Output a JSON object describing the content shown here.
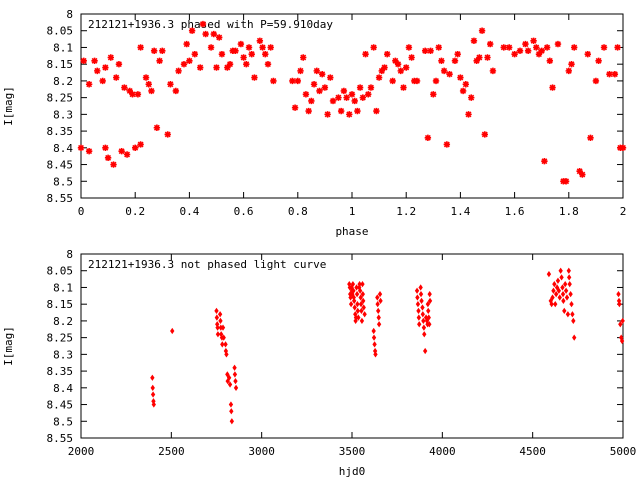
{
  "colors": {
    "marker": "#ff0000",
    "axis": "#000000",
    "background": "#ffffff"
  },
  "chart_data": [
    {
      "type": "scatter",
      "title": "212121+1936.3 phased with P=59.910day",
      "xlabel": "phase",
      "ylabel": "I[mag]",
      "xlim": [
        0,
        2
      ],
      "ylim": [
        8.55,
        8.0
      ],
      "y_inverted": true,
      "grid": false,
      "marker": "star",
      "xticks": [
        0,
        0.2,
        0.4,
        0.6,
        0.8,
        1,
        1.2,
        1.4,
        1.6,
        1.8,
        2
      ],
      "xtick_labels": [
        "0",
        "0.2",
        "0.4",
        "0.6",
        "0.8",
        "1",
        "1.2",
        "1.4",
        "1.6",
        "1.8",
        "2"
      ],
      "yticks": [
        8,
        8.05,
        8.1,
        8.15,
        8.2,
        8.25,
        8.3,
        8.35,
        8.4,
        8.45,
        8.5,
        8.55
      ],
      "ytick_labels": [
        "8",
        "8.05",
        "8.1",
        "8.15",
        "8.2",
        "8.25",
        "8.3",
        "8.35",
        "8.4",
        "8.45",
        "8.5",
        "8.55"
      ],
      "points": [
        [
          0.0,
          8.4
        ],
        [
          0.01,
          8.14
        ],
        [
          0.03,
          8.41
        ],
        [
          0.03,
          8.21
        ],
        [
          0.05,
          8.14
        ],
        [
          0.06,
          8.17
        ],
        [
          0.08,
          8.2
        ],
        [
          0.09,
          8.4
        ],
        [
          0.09,
          8.16
        ],
        [
          0.1,
          8.43
        ],
        [
          0.11,
          8.13
        ],
        [
          0.12,
          8.45
        ],
        [
          0.13,
          8.19
        ],
        [
          0.14,
          8.15
        ],
        [
          0.15,
          8.41
        ],
        [
          0.16,
          8.22
        ],
        [
          0.17,
          8.42
        ],
        [
          0.18,
          8.23
        ],
        [
          0.19,
          8.24
        ],
        [
          0.2,
          8.4
        ],
        [
          0.21,
          8.24
        ],
        [
          0.22,
          8.1
        ],
        [
          0.22,
          8.39
        ],
        [
          0.24,
          8.19
        ],
        [
          0.25,
          8.21
        ],
        [
          0.26,
          8.23
        ],
        [
          0.27,
          8.11
        ],
        [
          0.28,
          8.34
        ],
        [
          0.29,
          8.14
        ],
        [
          0.3,
          8.11
        ],
        [
          0.32,
          8.36
        ],
        [
          0.33,
          8.21
        ],
        [
          0.35,
          8.23
        ],
        [
          0.36,
          8.17
        ],
        [
          0.38,
          8.15
        ],
        [
          0.39,
          8.09
        ],
        [
          0.4,
          8.14
        ],
        [
          0.41,
          8.05
        ],
        [
          0.42,
          8.12
        ],
        [
          0.44,
          8.16
        ],
        [
          0.45,
          8.03
        ],
        [
          0.46,
          8.06
        ],
        [
          0.48,
          8.1
        ],
        [
          0.49,
          8.06
        ],
        [
          0.5,
          8.16
        ],
        [
          0.51,
          8.07
        ],
        [
          0.52,
          8.12
        ],
        [
          0.54,
          8.16
        ],
        [
          0.55,
          8.15
        ],
        [
          0.56,
          8.11
        ],
        [
          0.57,
          8.11
        ],
        [
          0.59,
          8.09
        ],
        [
          0.6,
          8.13
        ],
        [
          0.61,
          8.15
        ],
        [
          0.62,
          8.1
        ],
        [
          0.63,
          8.12
        ],
        [
          0.64,
          8.19
        ],
        [
          0.66,
          8.08
        ],
        [
          0.67,
          8.1
        ],
        [
          0.68,
          8.12
        ],
        [
          0.69,
          8.15
        ],
        [
          0.7,
          8.1
        ],
        [
          0.71,
          8.2
        ],
        [
          0.78,
          8.2
        ],
        [
          0.79,
          8.28
        ],
        [
          0.8,
          8.2
        ],
        [
          0.81,
          8.17
        ],
        [
          0.82,
          8.13
        ],
        [
          0.83,
          8.24
        ],
        [
          0.84,
          8.29
        ],
        [
          0.85,
          8.26
        ],
        [
          0.86,
          8.21
        ],
        [
          0.87,
          8.17
        ],
        [
          0.88,
          8.23
        ],
        [
          0.89,
          8.18
        ],
        [
          0.9,
          8.22
        ],
        [
          0.91,
          8.3
        ],
        [
          0.92,
          8.19
        ],
        [
          0.93,
          8.26
        ],
        [
          0.95,
          8.25
        ],
        [
          0.96,
          8.29
        ],
        [
          0.97,
          8.23
        ],
        [
          0.98,
          8.25
        ],
        [
          0.99,
          8.3
        ],
        [
          1.0,
          8.24
        ],
        [
          1.01,
          8.26
        ],
        [
          1.02,
          8.29
        ],
        [
          1.03,
          8.22
        ],
        [
          1.04,
          8.25
        ],
        [
          1.05,
          8.12
        ],
        [
          1.06,
          8.24
        ],
        [
          1.07,
          8.22
        ],
        [
          1.08,
          8.1
        ],
        [
          1.09,
          8.29
        ],
        [
          1.1,
          8.19
        ],
        [
          1.11,
          8.17
        ],
        [
          1.12,
          8.16
        ],
        [
          1.13,
          8.12
        ],
        [
          1.15,
          8.2
        ],
        [
          1.16,
          8.14
        ],
        [
          1.17,
          8.15
        ],
        [
          1.18,
          8.17
        ],
        [
          1.19,
          8.22
        ],
        [
          1.2,
          8.16
        ],
        [
          1.21,
          8.1
        ],
        [
          1.22,
          8.13
        ],
        [
          1.23,
          8.2
        ],
        [
          1.24,
          8.2
        ],
        [
          1.27,
          8.11
        ],
        [
          1.28,
          8.37
        ],
        [
          1.29,
          8.11
        ],
        [
          1.3,
          8.24
        ],
        [
          1.31,
          8.2
        ],
        [
          1.32,
          8.1
        ],
        [
          1.33,
          8.14
        ],
        [
          1.34,
          8.17
        ],
        [
          1.35,
          8.39
        ],
        [
          1.36,
          8.18
        ],
        [
          1.38,
          8.14
        ],
        [
          1.39,
          8.12
        ],
        [
          1.4,
          8.19
        ],
        [
          1.41,
          8.23
        ],
        [
          1.42,
          8.21
        ],
        [
          1.43,
          8.3
        ],
        [
          1.44,
          8.25
        ],
        [
          1.45,
          8.08
        ],
        [
          1.46,
          8.14
        ],
        [
          1.47,
          8.13
        ],
        [
          1.48,
          8.05
        ],
        [
          1.49,
          8.36
        ],
        [
          1.5,
          8.13
        ],
        [
          1.51,
          8.09
        ],
        [
          1.52,
          8.17
        ],
        [
          1.56,
          8.1
        ],
        [
          1.58,
          8.1
        ],
        [
          1.6,
          8.12
        ],
        [
          1.62,
          8.11
        ],
        [
          1.64,
          8.09
        ],
        [
          1.65,
          8.11
        ],
        [
          1.67,
          8.08
        ],
        [
          1.68,
          8.1
        ],
        [
          1.69,
          8.12
        ],
        [
          1.7,
          8.11
        ],
        [
          1.71,
          8.44
        ],
        [
          1.72,
          8.1
        ],
        [
          1.73,
          8.14
        ],
        [
          1.74,
          8.22
        ],
        [
          1.76,
          8.09
        ],
        [
          1.78,
          8.5
        ],
        [
          1.79,
          8.5
        ],
        [
          1.8,
          8.17
        ],
        [
          1.81,
          8.15
        ],
        [
          1.82,
          8.1
        ],
        [
          1.84,
          8.47
        ],
        [
          1.85,
          8.48
        ],
        [
          1.87,
          8.12
        ],
        [
          1.88,
          8.37
        ],
        [
          1.9,
          8.2
        ],
        [
          1.91,
          8.14
        ],
        [
          1.93,
          8.1
        ],
        [
          1.95,
          8.18
        ],
        [
          1.97,
          8.18
        ],
        [
          1.98,
          8.1
        ],
        [
          1.99,
          8.4
        ],
        [
          2.0,
          8.4
        ]
      ]
    },
    {
      "type": "scatter",
      "title": "212121+1936.3 not phased light curve",
      "xlabel": "hjd0",
      "ylabel": "I[mag]",
      "xlim": [
        2000,
        5000
      ],
      "ylim": [
        8.55,
        8.0
      ],
      "y_inverted": true,
      "grid": false,
      "marker": "diamond",
      "xticks": [
        2000,
        2500,
        3000,
        3500,
        4000,
        4500,
        5000
      ],
      "xtick_labels": [
        "2000",
        "2500",
        "3000",
        "3500",
        "4000",
        "4500",
        "5000"
      ],
      "yticks": [
        8,
        8.05,
        8.1,
        8.15,
        8.2,
        8.25,
        8.3,
        8.35,
        8.4,
        8.45,
        8.5,
        8.55
      ],
      "ytick_labels": [
        "8",
        "8.05",
        "8.1",
        "8.15",
        "8.2",
        "8.25",
        "8.3",
        "8.35",
        "8.4",
        "8.45",
        "8.5",
        "8.55"
      ],
      "points": [
        [
          2395,
          8.37
        ],
        [
          2397,
          8.4
        ],
        [
          2399,
          8.42
        ],
        [
          2401,
          8.44
        ],
        [
          2403,
          8.45
        ],
        [
          2505,
          8.23
        ],
        [
          2750,
          8.17
        ],
        [
          2752,
          8.19
        ],
        [
          2754,
          8.21
        ],
        [
          2756,
          8.22
        ],
        [
          2758,
          8.24
        ],
        [
          2770,
          8.18
        ],
        [
          2772,
          8.2
        ],
        [
          2774,
          8.22
        ],
        [
          2776,
          8.24
        ],
        [
          2780,
          8.25
        ],
        [
          2782,
          8.27
        ],
        [
          2786,
          8.22
        ],
        [
          2790,
          8.25
        ],
        [
          2800,
          8.27
        ],
        [
          2802,
          8.29
        ],
        [
          2805,
          8.3
        ],
        [
          2810,
          8.36
        ],
        [
          2812,
          8.38
        ],
        [
          2820,
          8.37
        ],
        [
          2825,
          8.39
        ],
        [
          2830,
          8.45
        ],
        [
          2832,
          8.47
        ],
        [
          2835,
          8.5
        ],
        [
          2850,
          8.34
        ],
        [
          2852,
          8.36
        ],
        [
          2855,
          8.38
        ],
        [
          2858,
          8.4
        ],
        [
          3485,
          8.09
        ],
        [
          3488,
          8.1
        ],
        [
          3490,
          8.12
        ],
        [
          3492,
          8.13
        ],
        [
          3495,
          8.15
        ],
        [
          3498,
          8.1
        ],
        [
          3500,
          8.11
        ],
        [
          3502,
          8.12
        ],
        [
          3505,
          8.09
        ],
        [
          3508,
          8.11
        ],
        [
          3510,
          8.13
        ],
        [
          3512,
          8.14
        ],
        [
          3515,
          8.16
        ],
        [
          3518,
          8.18
        ],
        [
          3520,
          8.2
        ],
        [
          3522,
          8.19
        ],
        [
          3525,
          8.1
        ],
        [
          3528,
          8.12
        ],
        [
          3530,
          8.15
        ],
        [
          3532,
          8.17
        ],
        [
          3535,
          8.19
        ],
        [
          3540,
          8.1
        ],
        [
          3542,
          8.09
        ],
        [
          3545,
          8.11
        ],
        [
          3548,
          8.13
        ],
        [
          3550,
          8.15
        ],
        [
          3552,
          8.17
        ],
        [
          3555,
          8.2
        ],
        [
          3558,
          8.09
        ],
        [
          3560,
          8.12
        ],
        [
          3562,
          8.14
        ],
        [
          3565,
          8.16
        ],
        [
          3570,
          8.18
        ],
        [
          3620,
          8.23
        ],
        [
          3622,
          8.25
        ],
        [
          3625,
          8.27
        ],
        [
          3628,
          8.29
        ],
        [
          3630,
          8.3
        ],
        [
          3640,
          8.13
        ],
        [
          3642,
          8.15
        ],
        [
          3645,
          8.17
        ],
        [
          3648,
          8.19
        ],
        [
          3650,
          8.21
        ],
        [
          3655,
          8.12
        ],
        [
          3658,
          8.14
        ],
        [
          3860,
          8.11
        ],
        [
          3862,
          8.13
        ],
        [
          3865,
          8.15
        ],
        [
          3868,
          8.17
        ],
        [
          3870,
          8.19
        ],
        [
          3872,
          8.21
        ],
        [
          3880,
          8.1
        ],
        [
          3882,
          8.12
        ],
        [
          3885,
          8.14
        ],
        [
          3890,
          8.16
        ],
        [
          3892,
          8.18
        ],
        [
          3895,
          8.2
        ],
        [
          3898,
          8.22
        ],
        [
          3900,
          8.24
        ],
        [
          3905,
          8.29
        ],
        [
          3910,
          8.19
        ],
        [
          3915,
          8.2
        ],
        [
          3918,
          8.21
        ],
        [
          3920,
          8.15
        ],
        [
          3922,
          8.17
        ],
        [
          3925,
          8.19
        ],
        [
          3928,
          8.21
        ],
        [
          3930,
          8.12
        ],
        [
          3932,
          8.14
        ],
        [
          4590,
          8.06
        ],
        [
          4600,
          8.14
        ],
        [
          4605,
          8.15
        ],
        [
          4610,
          8.13
        ],
        [
          4615,
          8.11
        ],
        [
          4620,
          8.09
        ],
        [
          4625,
          8.15
        ],
        [
          4630,
          8.12
        ],
        [
          4635,
          8.1
        ],
        [
          4640,
          8.08
        ],
        [
          4645,
          8.11
        ],
        [
          4650,
          8.13
        ],
        [
          4655,
          8.05
        ],
        [
          4660,
          8.07
        ],
        [
          4665,
          8.1
        ],
        [
          4668,
          8.12
        ],
        [
          4670,
          8.14
        ],
        [
          4675,
          8.17
        ],
        [
          4680,
          8.09
        ],
        [
          4685,
          8.11
        ],
        [
          4690,
          8.13
        ],
        [
          4695,
          8.18
        ],
        [
          4700,
          8.05
        ],
        [
          4702,
          8.07
        ],
        [
          4705,
          8.09
        ],
        [
          4710,
          8.12
        ],
        [
          4715,
          8.15
        ],
        [
          4720,
          8.18
        ],
        [
          4725,
          8.2
        ],
        [
          4730,
          8.25
        ],
        [
          4975,
          8.12
        ],
        [
          4978,
          8.14
        ],
        [
          4980,
          8.15
        ],
        [
          4985,
          8.21
        ],
        [
          4990,
          8.25
        ],
        [
          4995,
          8.26
        ],
        [
          4998,
          8.2
        ]
      ]
    }
  ]
}
